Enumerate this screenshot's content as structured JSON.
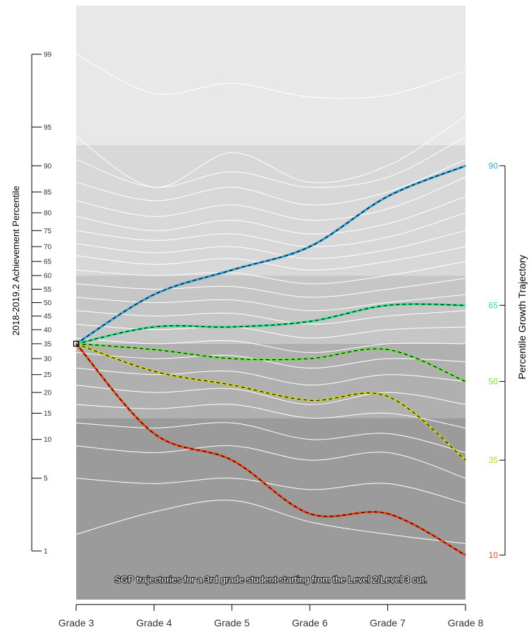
{
  "chart_data": {
    "type": "line",
    "x": [
      "Grade 3",
      "Grade 4",
      "Grade 5",
      "Grade 6",
      "Grade 7",
      "Grade 8"
    ],
    "ylabel": "2018-2019.2 Achievement Percentile",
    "y2label": "Percentile Growth Trajectory",
    "annotation": "SGP trajectories for a 3rd grade student starting from the Level 2/Level 3 cut.",
    "y_ticks": [
      1,
      5,
      10,
      15,
      20,
      25,
      30,
      35,
      40,
      45,
      50,
      55,
      60,
      65,
      70,
      75,
      80,
      85,
      90,
      95,
      99
    ],
    "y_tick_labels": [
      "1",
      "5",
      "10",
      "15",
      "20",
      "25",
      "30",
      "35",
      "40",
      "45",
      "50",
      "55",
      "60",
      "65",
      "70",
      "75",
      "80",
      "85",
      "90",
      "95",
      "99"
    ],
    "y_scale": "normal-quantile (percentile)",
    "ylim": [
      1,
      99
    ],
    "level_bands": [
      {
        "from": 0.2,
        "to": 14,
        "color": "#9b9b9b"
      },
      {
        "from": 14,
        "to": 35,
        "color": "#b0b0b0"
      },
      {
        "from": 35,
        "to": 60,
        "color": "#c6c6c6"
      },
      {
        "from": 60,
        "to": 93,
        "color": "#d8d8d8"
      },
      {
        "from": 93,
        "to": 99.8,
        "color": "#e8e8e8"
      }
    ],
    "start_point": {
      "x": "Grade 3",
      "y": 35
    },
    "series": [
      {
        "name": "90",
        "color": "#3aa3d6",
        "values": [
          35,
          53,
          62,
          70,
          84,
          90
        ]
      },
      {
        "name": "65",
        "color": "#2ee08c",
        "values": [
          35,
          41,
          41,
          43,
          49,
          49
        ]
      },
      {
        "name": "50",
        "color": "#6fe04a",
        "values": [
          35,
          33,
          30,
          30,
          33,
          23
        ]
      },
      {
        "name": "35",
        "color": "#c9d12a",
        "values": [
          35,
          26,
          22,
          18,
          19,
          7
        ]
      },
      {
        "name": "10",
        "color": "#e8491d",
        "values": [
          35,
          11,
          7,
          2.4,
          2.4,
          0.9
        ]
      }
    ],
    "right_axis_ticks": [
      "90",
      "65",
      "50",
      "35",
      "10"
    ],
    "background_percentile_curves": [
      [
        99,
        97.5,
        98,
        97.3,
        97.4,
        98.5
      ],
      [
        94,
        86,
        92,
        87,
        90,
        96
      ],
      [
        91,
        86,
        89,
        86,
        88,
        94
      ],
      [
        87,
        83,
        86,
        82,
        85,
        91
      ],
      [
        83,
        79,
        82,
        78,
        81,
        88
      ],
      [
        79,
        75,
        78,
        74,
        77,
        84
      ],
      [
        75,
        72,
        74,
        70,
        73,
        80
      ],
      [
        71,
        68,
        70,
        66,
        69,
        75
      ],
      [
        67,
        64,
        66,
        62,
        65,
        70
      ],
      [
        62,
        60,
        61,
        57,
        60,
        65
      ],
      [
        57,
        55,
        56,
        52,
        55,
        59
      ],
      [
        52,
        50,
        51,
        47,
        50,
        53
      ],
      [
        47,
        45,
        46,
        42,
        45,
        47
      ],
      [
        42,
        40,
        41,
        37,
        40,
        41
      ],
      [
        37,
        35,
        36,
        32,
        35,
        35
      ],
      [
        32,
        30,
        31,
        27,
        30,
        29
      ],
      [
        27,
        25,
        26,
        22,
        25,
        23
      ],
      [
        22,
        20,
        21,
        17,
        20,
        17
      ],
      [
        17,
        16,
        17,
        14,
        15,
        12
      ],
      [
        13,
        12,
        13,
        10,
        11,
        8
      ],
      [
        9,
        8,
        9,
        7,
        8,
        5
      ],
      [
        5,
        4.5,
        5,
        4,
        4.5,
        3
      ],
      [
        1.5,
        2.5,
        3.2,
        2,
        1.5,
        1.2
      ]
    ]
  }
}
